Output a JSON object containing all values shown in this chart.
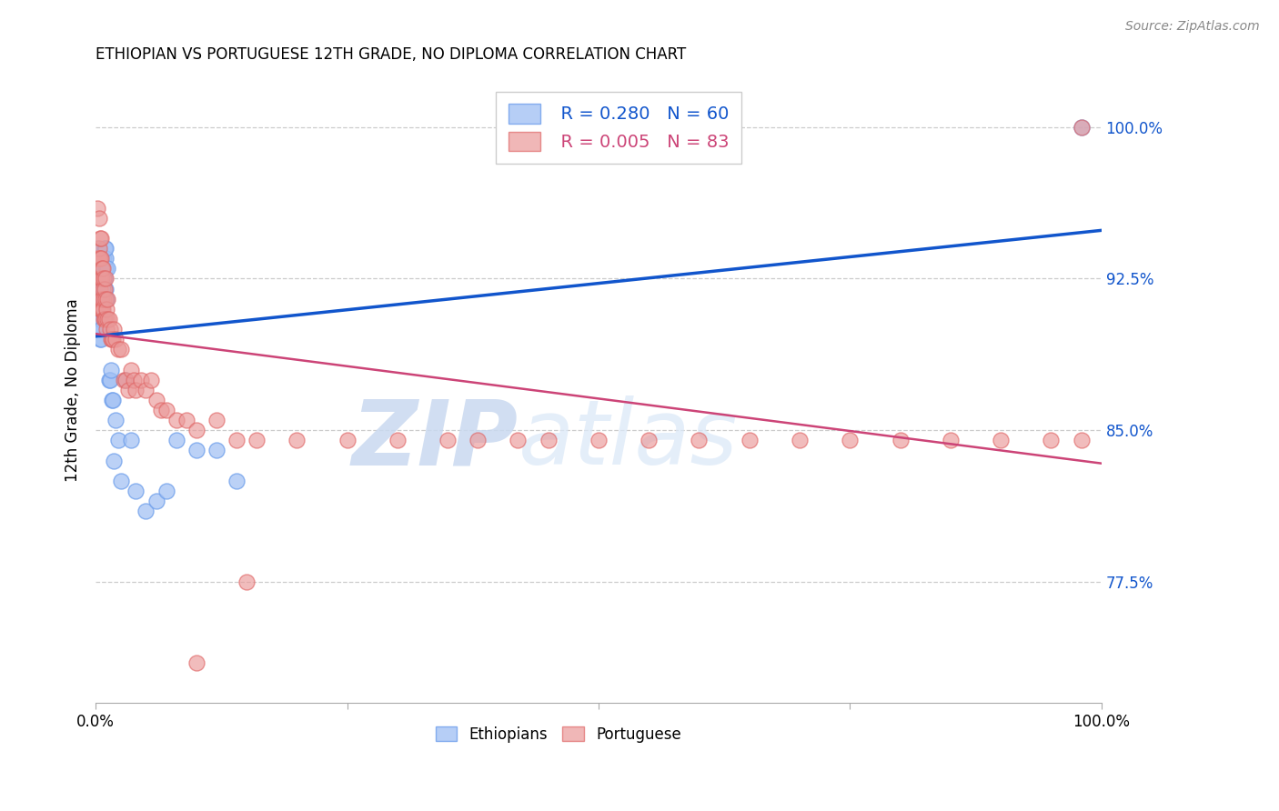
{
  "title": "ETHIOPIAN VS PORTUGUESE 12TH GRADE, NO DIPLOMA CORRELATION CHART",
  "source": "Source: ZipAtlas.com",
  "ylabel": "12th Grade, No Diploma",
  "ytick_labels": [
    "100.0%",
    "92.5%",
    "85.0%",
    "77.5%"
  ],
  "ytick_values": [
    1.0,
    0.925,
    0.85,
    0.775
  ],
  "xlim": [
    0.0,
    1.0
  ],
  "ylim": [
    0.715,
    1.025
  ],
  "blue_fill": "#a4c2f4",
  "blue_edge": "#6d9eeb",
  "pink_fill": "#ea9999",
  "pink_edge": "#e06666",
  "blue_line_color": "#1155cc",
  "pink_line_color": "#cc4477",
  "legend_blue_r": "R = 0.280",
  "legend_blue_n": "N = 60",
  "legend_pink_r": "R = 0.005",
  "legend_pink_n": "N = 83",
  "watermark_zip": "ZIP",
  "watermark_atlas": "atlas",
  "ethiopians_x": [
    0.002,
    0.002,
    0.002,
    0.003,
    0.003,
    0.003,
    0.003,
    0.003,
    0.003,
    0.003,
    0.003,
    0.004,
    0.004,
    0.004,
    0.004,
    0.004,
    0.004,
    0.004,
    0.005,
    0.005,
    0.005,
    0.005,
    0.005,
    0.006,
    0.006,
    0.006,
    0.006,
    0.007,
    0.007,
    0.007,
    0.008,
    0.008,
    0.009,
    0.009,
    0.01,
    0.01,
    0.01,
    0.01,
    0.011,
    0.012,
    0.013,
    0.014,
    0.015,
    0.016,
    0.017,
    0.018,
    0.02,
    0.022,
    0.025,
    0.03,
    0.035,
    0.04,
    0.05,
    0.06,
    0.07,
    0.08,
    0.1,
    0.12,
    0.14,
    0.98
  ],
  "ethiopians_y": [
    0.935,
    0.935,
    0.94,
    0.9,
    0.905,
    0.91,
    0.915,
    0.92,
    0.925,
    0.93,
    0.935,
    0.895,
    0.9,
    0.905,
    0.91,
    0.92,
    0.925,
    0.93,
    0.895,
    0.9,
    0.915,
    0.92,
    0.93,
    0.91,
    0.915,
    0.925,
    0.935,
    0.915,
    0.925,
    0.935,
    0.92,
    0.935,
    0.925,
    0.94,
    0.92,
    0.93,
    0.935,
    0.94,
    0.915,
    0.93,
    0.875,
    0.875,
    0.88,
    0.865,
    0.865,
    0.835,
    0.855,
    0.845,
    0.825,
    0.875,
    0.845,
    0.82,
    0.81,
    0.815,
    0.82,
    0.845,
    0.84,
    0.84,
    0.825,
    1.0
  ],
  "portuguese_x": [
    0.002,
    0.002,
    0.003,
    0.003,
    0.003,
    0.003,
    0.004,
    0.004,
    0.004,
    0.004,
    0.004,
    0.005,
    0.005,
    0.005,
    0.005,
    0.005,
    0.006,
    0.006,
    0.006,
    0.006,
    0.007,
    0.007,
    0.007,
    0.008,
    0.008,
    0.008,
    0.009,
    0.009,
    0.01,
    0.01,
    0.01,
    0.011,
    0.011,
    0.012,
    0.012,
    0.013,
    0.014,
    0.015,
    0.016,
    0.017,
    0.018,
    0.02,
    0.022,
    0.025,
    0.028,
    0.03,
    0.032,
    0.035,
    0.038,
    0.04,
    0.045,
    0.05,
    0.055,
    0.06,
    0.065,
    0.07,
    0.08,
    0.09,
    0.1,
    0.12,
    0.14,
    0.16,
    0.2,
    0.25,
    0.3,
    0.35,
    0.38,
    0.42,
    0.45,
    0.5,
    0.55,
    0.6,
    0.65,
    0.7,
    0.75,
    0.8,
    0.85,
    0.9,
    0.95,
    0.98,
    0.1,
    0.15,
    0.98
  ],
  "portuguese_y": [
    0.935,
    0.96,
    0.955,
    0.935,
    0.935,
    0.94,
    0.91,
    0.935,
    0.945,
    0.92,
    0.925,
    0.91,
    0.915,
    0.925,
    0.935,
    0.945,
    0.91,
    0.915,
    0.925,
    0.93,
    0.91,
    0.92,
    0.93,
    0.905,
    0.915,
    0.925,
    0.905,
    0.92,
    0.905,
    0.915,
    0.925,
    0.9,
    0.91,
    0.905,
    0.915,
    0.905,
    0.9,
    0.895,
    0.895,
    0.895,
    0.9,
    0.895,
    0.89,
    0.89,
    0.875,
    0.875,
    0.87,
    0.88,
    0.875,
    0.87,
    0.875,
    0.87,
    0.875,
    0.865,
    0.86,
    0.86,
    0.855,
    0.855,
    0.85,
    0.855,
    0.845,
    0.845,
    0.845,
    0.845,
    0.845,
    0.845,
    0.845,
    0.845,
    0.845,
    0.845,
    0.845,
    0.845,
    0.845,
    0.845,
    0.845,
    0.845,
    0.845,
    0.845,
    0.845,
    0.845,
    0.735,
    0.775,
    1.0
  ]
}
